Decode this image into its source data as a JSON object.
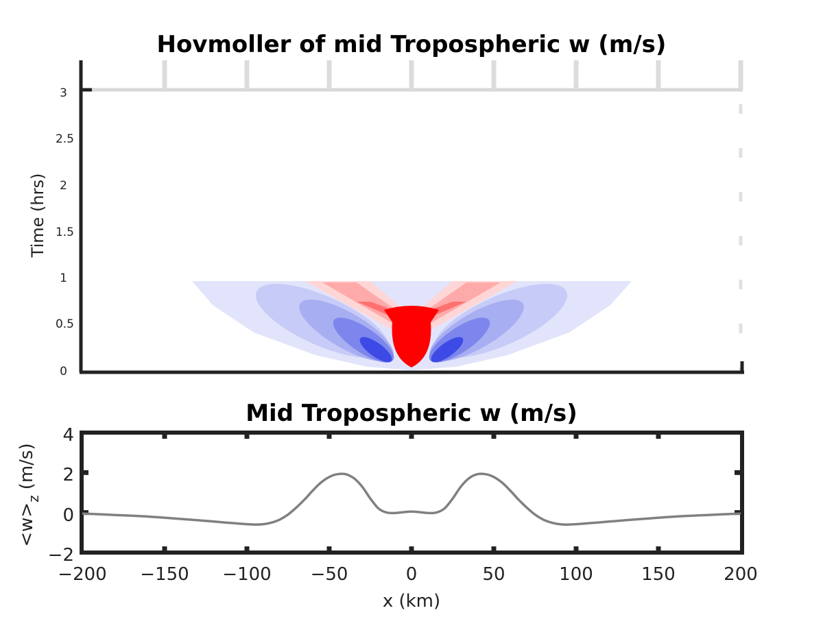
{
  "chart_data": [
    {
      "type": "heatmap",
      "title": "Hovmoller of mid Tropospheric w (m/s)",
      "xlabel": "",
      "ylabel": "Time (hrs)",
      "xlim": [
        -200,
        200
      ],
      "ylim": [
        0,
        3
      ],
      "xticks": [
        -200,
        -150,
        -100,
        -50,
        0,
        50,
        100,
        150,
        200
      ],
      "yticks": [
        "0",
        "0.5",
        "1",
        "1.5",
        "2",
        "2.5",
        "3"
      ],
      "colormap": "blue-white-red (diverging)",
      "colors": {
        "positive": "#ff0000",
        "negative": "#0000ff",
        "zero": "#ffffff"
      },
      "data_extent_time": [
        0,
        1.0
      ],
      "description_features": [
        {
          "name": "central updraft",
          "sign": "positive",
          "x": 0,
          "t_range": [
            0,
            1.0
          ],
          "branches_to_x": [
            -60,
            60
          ]
        },
        {
          "name": "left subsidence",
          "sign": "negative",
          "peak_x": -22,
          "peak_t": 0.15,
          "outer_x_at_t1": -130
        },
        {
          "name": "right subsidence",
          "sign": "negative",
          "peak_x": 22,
          "peak_t": 0.15,
          "outer_x_at_t1": 135
        }
      ],
      "grid": false
    },
    {
      "type": "line",
      "title": "Mid Tropospheric w (m/s)",
      "xlabel": "x (km)",
      "ylabel": "<w>",
      "ylabel_sub": "z",
      "ylabel_suffix": "(m/s)",
      "xlim": [
        -200,
        200
      ],
      "ylim": [
        -2,
        4
      ],
      "xticks": [
        "−200",
        "−150",
        "−100",
        "−50",
        "0",
        "50",
        "100",
        "150",
        "200"
      ],
      "yticks": [
        "−2",
        "0",
        "2",
        "4"
      ],
      "line_color": "#808080",
      "series": [
        {
          "x": [
            -200,
            -180,
            -160,
            -140,
            -120,
            -110,
            -100,
            -95,
            -90,
            -85,
            -80,
            -75,
            -70,
            -65,
            -60,
            -55,
            -50,
            -45,
            -40,
            -35,
            -30,
            -25,
            -20,
            -15,
            -10,
            -5,
            0,
            5,
            10,
            15,
            20,
            25,
            30,
            35,
            40,
            45,
            50,
            55,
            60,
            65,
            70,
            75,
            80,
            85,
            90,
            95,
            100,
            110,
            120,
            140,
            160,
            180,
            200
          ],
          "y": [
            -0.05,
            -0.12,
            -0.2,
            -0.32,
            -0.45,
            -0.52,
            -0.58,
            -0.6,
            -0.58,
            -0.5,
            -0.35,
            -0.1,
            0.25,
            0.65,
            1.1,
            1.5,
            1.78,
            1.92,
            1.92,
            1.72,
            1.3,
            0.7,
            0.2,
            0.0,
            -0.02,
            0.02,
            0.05,
            0.02,
            -0.02,
            0.0,
            0.2,
            0.7,
            1.3,
            1.72,
            1.92,
            1.92,
            1.78,
            1.5,
            1.1,
            0.65,
            0.25,
            -0.1,
            -0.35,
            -0.5,
            -0.58,
            -0.6,
            -0.58,
            -0.52,
            -0.45,
            -0.32,
            -0.2,
            -0.12,
            -0.05
          ]
        }
      ],
      "grid": false
    }
  ]
}
